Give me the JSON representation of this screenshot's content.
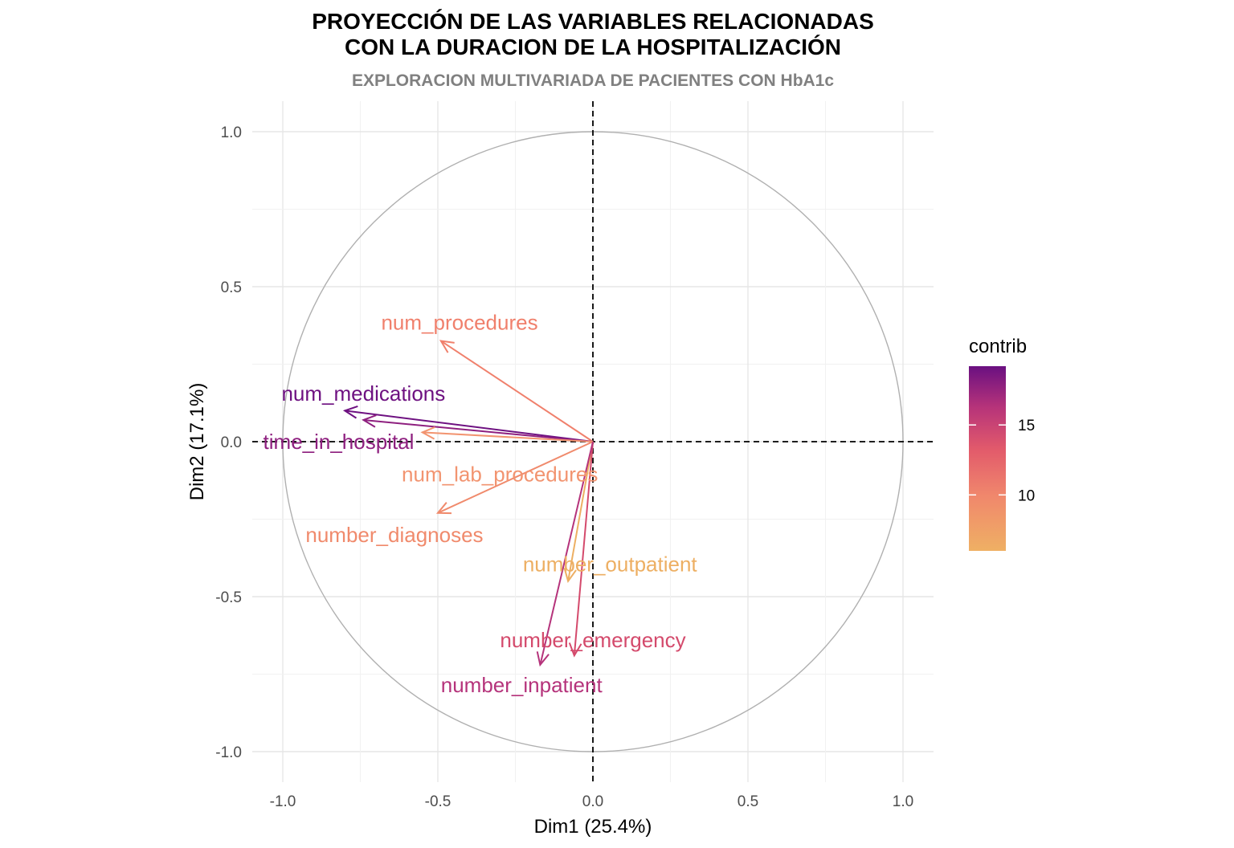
{
  "chart_data": {
    "type": "scatter",
    "subtype": "pca-variable-correlation-circle",
    "title_line1": "PROYECCIÓN DE LAS VARIABLES RELACIONADAS",
    "title_line2": "CON LA DURACION DE LA HOSPITALIZACIÓN",
    "subtitle": "EXPLORACION MULTIVARIADA DE PACIENTES CON HbA1c",
    "xlabel": "Dim1 (25.4%)",
    "ylabel": "Dim2 (17.1%)",
    "xlim": [
      -1.1,
      1.1
    ],
    "ylim": [
      -1.1,
      1.1
    ],
    "x_ticks": [
      -1.0,
      -0.5,
      0.0,
      0.5,
      1.0
    ],
    "y_ticks": [
      -1.0,
      -0.5,
      0.0,
      0.5,
      1.0
    ],
    "x_tick_labels": [
      "-1.0",
      "-0.5",
      "0.0",
      "0.5",
      "1.0"
    ],
    "y_tick_labels": [
      "-1.0",
      "-0.5",
      "0.0",
      "0.5",
      "1.0"
    ],
    "grid": true,
    "legend": {
      "title": "contrib",
      "position": "right",
      "min": 6.0,
      "max": 19.2,
      "ticks": [
        10,
        15
      ],
      "tick_labels": [
        "10",
        "15"
      ],
      "gradient": [
        "#EFB064",
        "#F0876C",
        "#E25A6B",
        "#B6337A",
        "#6A1081"
      ]
    },
    "variables": [
      {
        "name": "num_procedures",
        "x": -0.49,
        "y": 0.325,
        "contrib": 10.5,
        "color": "#F0806C",
        "label_x": -0.43,
        "label_y": 0.385
      },
      {
        "name": "num_medications",
        "x": -0.8,
        "y": 0.1,
        "contrib": 19.0,
        "color": "#6E1181",
        "label_x": -0.74,
        "label_y": 0.155
      },
      {
        "name": "time_in_hospital",
        "x": -0.74,
        "y": 0.07,
        "contrib": 17.5,
        "color": "#8E1F7F",
        "label_x": -0.82,
        "label_y": 0.0
      },
      {
        "name": "num_lab_procedures",
        "x": -0.55,
        "y": 0.03,
        "contrib": 9.5,
        "color": "#F29470",
        "label_x": -0.3,
        "label_y": -0.105
      },
      {
        "name": "number_diagnoses",
        "x": -0.5,
        "y": -0.23,
        "contrib": 10.0,
        "color": "#F08A6C",
        "label_x": -0.64,
        "label_y": -0.3
      },
      {
        "name": "number_outpatient",
        "x": -0.08,
        "y": -0.45,
        "contrib": 6.5,
        "color": "#EDAF63",
        "label_x": 0.055,
        "label_y": -0.395
      },
      {
        "name": "number_emergency",
        "x": -0.06,
        "y": -0.69,
        "contrib": 14.5,
        "color": "#D44A6C",
        "label_x": 0.0,
        "label_y": -0.64
      },
      {
        "name": "number_inpatient",
        "x": -0.17,
        "y": -0.72,
        "contrib": 16.0,
        "color": "#B5337B",
        "label_x": -0.23,
        "label_y": -0.785
      }
    ]
  }
}
